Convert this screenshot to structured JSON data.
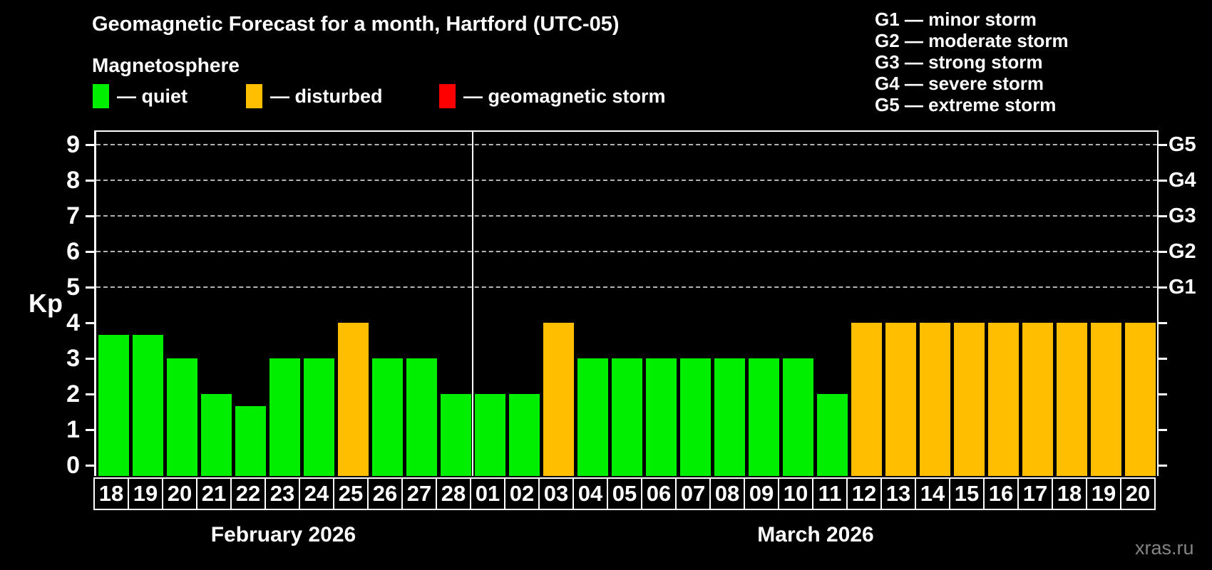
{
  "title": "Geomagnetic Forecast for a month, Hartford (UTC-05)",
  "subtitle": "Magnetosphere",
  "legend": [
    {
      "key": "quiet",
      "label": "— quiet",
      "color": "#00ee00"
    },
    {
      "key": "disturbed",
      "label": "— disturbed",
      "color": "#ffbe00"
    },
    {
      "key": "storm",
      "label": "— geomagnetic storm",
      "color": "#ff0000"
    }
  ],
  "g_scale": [
    {
      "code": "G1",
      "kp": 5,
      "label": "G1 — minor storm"
    },
    {
      "code": "G2",
      "kp": 6,
      "label": "G2 — moderate storm"
    },
    {
      "code": "G3",
      "kp": 7,
      "label": "G3 — strong storm"
    },
    {
      "code": "G4",
      "kp": 8,
      "label": "G4 — severe storm"
    },
    {
      "code": "G5",
      "kp": 9,
      "label": "G5 — extreme storm"
    }
  ],
  "watermark": "xras.ru",
  "chart_data": {
    "type": "bar",
    "title": "Geomagnetic Forecast for a month, Hartford (UTC-05)",
    "ylabel": "Kp",
    "ylim": [
      0,
      9.5
    ],
    "yticks": [
      0,
      1,
      2,
      3,
      4,
      5,
      6,
      7,
      8,
      9
    ],
    "grid_kp": [
      5,
      6,
      7,
      8,
      9
    ],
    "grid_style": "horizontal dashed gray at G-storm levels",
    "legend_position": "top-left",
    "months": [
      {
        "label": "February 2026",
        "days": [
          {
            "day": "18",
            "kp": 3.67,
            "status": "quiet"
          },
          {
            "day": "19",
            "kp": 3.67,
            "status": "quiet"
          },
          {
            "day": "20",
            "kp": 3,
            "status": "quiet"
          },
          {
            "day": "21",
            "kp": 2,
            "status": "quiet"
          },
          {
            "day": "22",
            "kp": 1.67,
            "status": "quiet"
          },
          {
            "day": "23",
            "kp": 3,
            "status": "quiet"
          },
          {
            "day": "24",
            "kp": 3,
            "status": "quiet"
          },
          {
            "day": "25",
            "kp": 4,
            "status": "disturbed"
          },
          {
            "day": "26",
            "kp": 3,
            "status": "quiet"
          },
          {
            "day": "27",
            "kp": 3,
            "status": "quiet"
          },
          {
            "day": "28",
            "kp": 2,
            "status": "quiet"
          }
        ]
      },
      {
        "label": "March 2026",
        "days": [
          {
            "day": "01",
            "kp": 2,
            "status": "quiet"
          },
          {
            "day": "02",
            "kp": 2,
            "status": "quiet"
          },
          {
            "day": "03",
            "kp": 4,
            "status": "disturbed"
          },
          {
            "day": "04",
            "kp": 3,
            "status": "quiet"
          },
          {
            "day": "05",
            "kp": 3,
            "status": "quiet"
          },
          {
            "day": "06",
            "kp": 3,
            "status": "quiet"
          },
          {
            "day": "07",
            "kp": 3,
            "status": "quiet"
          },
          {
            "day": "08",
            "kp": 3,
            "status": "quiet"
          },
          {
            "day": "09",
            "kp": 3,
            "status": "quiet"
          },
          {
            "day": "10",
            "kp": 3,
            "status": "quiet"
          },
          {
            "day": "11",
            "kp": 2,
            "status": "quiet"
          },
          {
            "day": "12",
            "kp": 4,
            "status": "disturbed"
          },
          {
            "day": "13",
            "kp": 4,
            "status": "disturbed"
          },
          {
            "day": "14",
            "kp": 4,
            "status": "disturbed"
          },
          {
            "day": "15",
            "kp": 4,
            "status": "disturbed"
          },
          {
            "day": "16",
            "kp": 4,
            "status": "disturbed"
          },
          {
            "day": "17",
            "kp": 4,
            "status": "disturbed"
          },
          {
            "day": "18",
            "kp": 4,
            "status": "disturbed"
          },
          {
            "day": "19",
            "kp": 4,
            "status": "disturbed"
          },
          {
            "day": "20",
            "kp": 4,
            "status": "disturbed"
          }
        ]
      }
    ]
  }
}
